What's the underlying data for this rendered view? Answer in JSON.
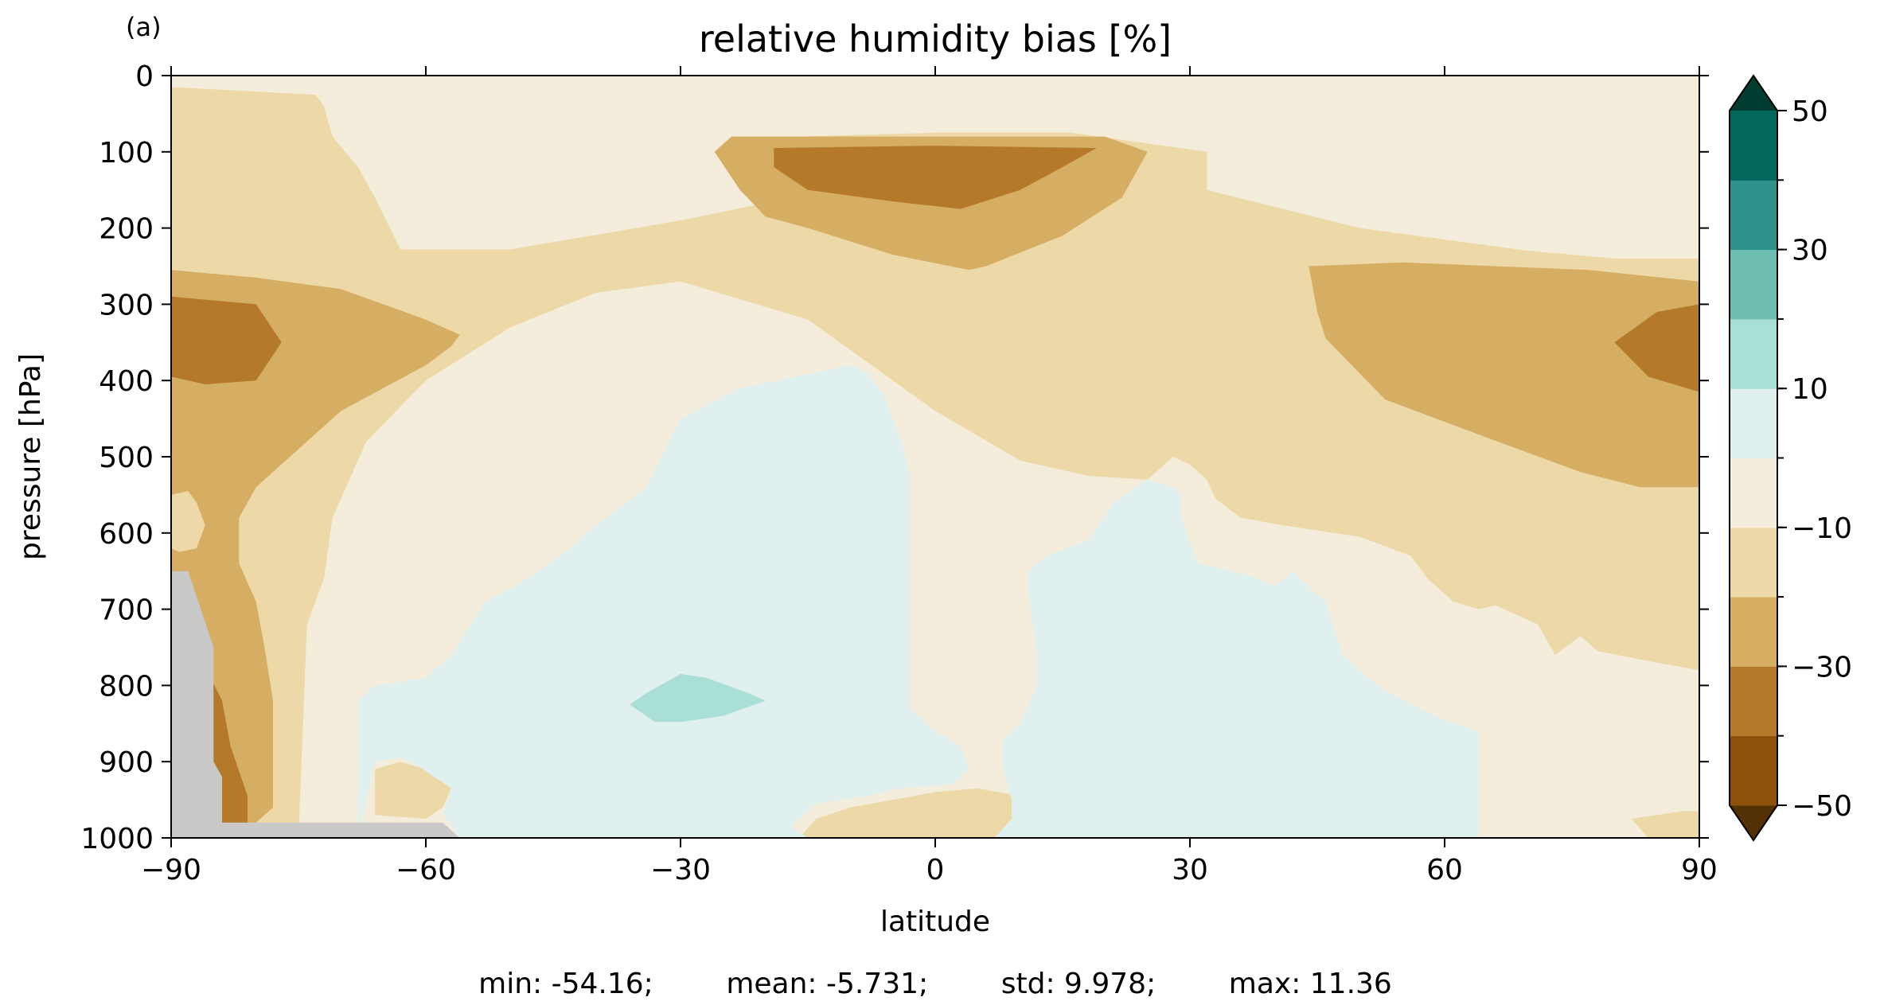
{
  "panel_label": "(a)",
  "stats_line": "min: -54.16;        mean: -5.731;        std: 9.978;        max: 11.36",
  "chart_data": {
    "type": "heatmap",
    "title": "relative humidity bias [%]",
    "xlabel": "latitude",
    "ylabel": "pressure [hPa]",
    "xlim": [
      -90,
      90
    ],
    "ylim": [
      1000,
      0
    ],
    "y_inverted": true,
    "grid": false,
    "x_ticks": [
      -90,
      -60,
      -30,
      0,
      30,
      60,
      90
    ],
    "x_tick_labels": [
      "−90",
      "−60",
      "−30",
      "0",
      "30",
      "60",
      "90"
    ],
    "y_ticks": [
      0,
      100,
      200,
      300,
      400,
      500,
      600,
      700,
      800,
      900,
      1000
    ],
    "y_tick_labels": [
      "0",
      "100",
      "200",
      "300",
      "400",
      "500",
      "600",
      "700",
      "800",
      "900",
      "1000"
    ],
    "colorbar": {
      "levels": [
        -50,
        -40,
        -30,
        -20,
        -10,
        0,
        10,
        20,
        30,
        40,
        50
      ],
      "tick_values": [
        50,
        30,
        10,
        -10,
        -30,
        -50
      ],
      "tick_labels": [
        "50",
        "30",
        "10",
        "−10",
        "−30",
        "−50"
      ],
      "extend": "both",
      "under_color": "#543005",
      "over_color": "#003c30",
      "colors": [
        "#8c510a",
        "#b5792a",
        "#d5ae63",
        "#edd9a7",
        "#f5eddc",
        "#e0f0ee",
        "#aadfd7",
        "#6ebfb2",
        "#2e928a",
        "#02675d"
      ]
    },
    "missing_color": "#c9c9c9",
    "regions": [
      {
        "level": -5,
        "points": [
          [
            -90,
            0
          ],
          [
            90,
            0
          ],
          [
            90,
            1000
          ],
          [
            -90,
            1000
          ]
        ]
      },
      {
        "level": -15,
        "points": [
          [
            -90,
            15
          ],
          [
            -73,
            25
          ],
          [
            -72,
            40
          ],
          [
            -71,
            80
          ],
          [
            -68,
            120
          ],
          [
            -66,
            160
          ],
          [
            -64,
            205
          ],
          [
            -63,
            228
          ],
          [
            -50,
            228
          ],
          [
            -30,
            190
          ],
          [
            -19,
            165
          ],
          [
            -19,
            140
          ],
          [
            -20,
            100
          ],
          [
            -16,
            80
          ],
          [
            0,
            75
          ],
          [
            16,
            75
          ],
          [
            32,
            100
          ],
          [
            32,
            150
          ],
          [
            50,
            200
          ],
          [
            70,
            230
          ],
          [
            80,
            240
          ],
          [
            90,
            240
          ],
          [
            90,
            780
          ],
          [
            85,
            770
          ],
          [
            78,
            755
          ],
          [
            76,
            735
          ],
          [
            73,
            760
          ],
          [
            71,
            720
          ],
          [
            69,
            710
          ],
          [
            66,
            695
          ],
          [
            64,
            700
          ],
          [
            61,
            690
          ],
          [
            58,
            660
          ],
          [
            56,
            630
          ],
          [
            50,
            605
          ],
          [
            41,
            590
          ],
          [
            36,
            580
          ],
          [
            33,
            555
          ],
          [
            32,
            530
          ],
          [
            30,
            510
          ],
          [
            28,
            500
          ],
          [
            25,
            530
          ],
          [
            18,
            525
          ],
          [
            10,
            505
          ],
          [
            0,
            440
          ],
          [
            -15,
            320
          ],
          [
            -30,
            270
          ],
          [
            -40,
            285
          ],
          [
            -50,
            330
          ],
          [
            -60,
            400
          ],
          [
            -67,
            480
          ],
          [
            -71,
            580
          ],
          [
            -72,
            660
          ],
          [
            -74,
            720
          ],
          [
            -75,
            1000
          ],
          [
            -90,
            1000
          ]
        ]
      },
      {
        "level": -15,
        "points": [
          [
            88,
            965
          ],
          [
            90,
            965
          ],
          [
            90,
            1000
          ],
          [
            84,
            1000
          ],
          [
            82,
            975
          ]
        ]
      },
      {
        "level": -15,
        "points": [
          [
            -16,
            1000
          ],
          [
            -14,
            975
          ],
          [
            -10,
            960
          ],
          [
            0,
            940
          ],
          [
            5,
            935
          ],
          [
            10,
            945
          ],
          [
            10,
            1000
          ]
        ]
      },
      {
        "level": -15,
        "points": [
          [
            -66,
            910
          ],
          [
            -63,
            900
          ],
          [
            -60,
            910
          ],
          [
            -57,
            935
          ],
          [
            -58,
            960
          ],
          [
            -60,
            975
          ],
          [
            -66,
            970
          ]
        ]
      },
      {
        "level": -25,
        "points": [
          [
            -90,
            255
          ],
          [
            -80,
            265
          ],
          [
            -70,
            280
          ],
          [
            -60,
            320
          ],
          [
            -56,
            340
          ],
          [
            -57,
            355
          ],
          [
            -60,
            380
          ],
          [
            -70,
            440
          ],
          [
            -80,
            540
          ],
          [
            -82,
            580
          ],
          [
            -82,
            640
          ],
          [
            -80,
            690
          ],
          [
            -79,
            750
          ],
          [
            -78,
            820
          ],
          [
            -78,
            900
          ],
          [
            -78,
            960
          ],
          [
            -82,
            1000
          ],
          [
            -90,
            1000
          ]
        ]
      },
      {
        "level": -25,
        "points": [
          [
            -26,
            100
          ],
          [
            -24,
            80
          ],
          [
            0,
            80
          ],
          [
            20,
            80
          ],
          [
            25,
            100
          ],
          [
            22,
            160
          ],
          [
            15,
            210
          ],
          [
            6,
            250
          ],
          [
            4,
            255
          ],
          [
            -5,
            235
          ],
          [
            -15,
            200
          ],
          [
            -20,
            185
          ],
          [
            -23,
            150
          ]
        ]
      },
      {
        "level": -25,
        "points": [
          [
            44,
            250
          ],
          [
            55,
            245
          ],
          [
            66,
            250
          ],
          [
            77,
            255
          ],
          [
            90,
            270
          ],
          [
            90,
            540
          ],
          [
            83,
            540
          ],
          [
            76,
            520
          ],
          [
            65,
            475
          ],
          [
            53,
            425
          ],
          [
            46,
            345
          ],
          [
            45,
            310
          ]
        ]
      },
      {
        "level": -20,
        "points": [
          [
            -90,
            550
          ],
          [
            -88,
            545
          ],
          [
            -87,
            560
          ],
          [
            -86,
            590
          ],
          [
            -87,
            620
          ],
          [
            -89,
            625
          ],
          [
            -90,
            620
          ]
        ]
      },
      {
        "level": -35,
        "points": [
          [
            -90,
            290
          ],
          [
            -80,
            300
          ],
          [
            -77,
            350
          ],
          [
            -80,
            400
          ],
          [
            -86,
            405
          ],
          [
            -90,
            395
          ]
        ]
      },
      {
        "level": -35,
        "points": [
          [
            -19,
            95
          ],
          [
            0,
            92
          ],
          [
            19,
            95
          ],
          [
            15,
            120
          ],
          [
            10,
            150
          ],
          [
            3,
            175
          ],
          [
            -5,
            165
          ],
          [
            -15,
            150
          ],
          [
            -19,
            120
          ]
        ]
      },
      {
        "level": -35,
        "points": [
          [
            80,
            350
          ],
          [
            85,
            310
          ],
          [
            90,
            300
          ],
          [
            90,
            415
          ],
          [
            84,
            395
          ]
        ]
      },
      {
        "level": -35,
        "points": [
          [
            -86,
            775
          ],
          [
            -84,
            820
          ],
          [
            -83,
            880
          ],
          [
            -81,
            945
          ],
          [
            -81,
            980
          ],
          [
            -86,
            990
          ]
        ]
      },
      {
        "level": 5,
        "points": [
          [
            -68,
            1000
          ],
          [
            -68,
            820
          ],
          [
            -66,
            800
          ],
          [
            -60,
            790
          ],
          [
            -57,
            760
          ],
          [
            -53,
            690
          ],
          [
            -48,
            660
          ],
          [
            -43,
            620
          ],
          [
            -40,
            590
          ],
          [
            -34,
            540
          ],
          [
            -30,
            450
          ],
          [
            -23,
            410
          ],
          [
            -10,
            380
          ],
          [
            -8,
            390
          ],
          [
            -6,
            420
          ],
          [
            -4,
            480
          ],
          [
            -3,
            520
          ],
          [
            -3,
            600
          ],
          [
            -3,
            700
          ],
          [
            -3,
            800
          ],
          [
            -3,
            830
          ],
          [
            0,
            860
          ],
          [
            3,
            880
          ],
          [
            4,
            910
          ],
          [
            2,
            930
          ],
          [
            -4,
            935
          ],
          [
            -8,
            945
          ],
          [
            -14,
            955
          ],
          [
            -17,
            985
          ],
          [
            -15,
            1000
          ],
          [
            -56,
            1000
          ],
          [
            -58,
            968
          ],
          [
            -57,
            935
          ],
          [
            -61,
            905
          ],
          [
            -63,
            895
          ],
          [
            -66,
            900
          ]
        ]
      },
      {
        "level": 5,
        "points": [
          [
            7,
            1000
          ],
          [
            9,
            975
          ],
          [
            9,
            950
          ],
          [
            8,
            910
          ],
          [
            8,
            870
          ],
          [
            10,
            850
          ],
          [
            12,
            800
          ],
          [
            12,
            760
          ],
          [
            11,
            680
          ],
          [
            11,
            650
          ],
          [
            13,
            630
          ],
          [
            18,
            610
          ],
          [
            21,
            560
          ],
          [
            25,
            530
          ],
          [
            28,
            540
          ],
          [
            29,
            550
          ],
          [
            29,
            580
          ],
          [
            31,
            640
          ],
          [
            37,
            655
          ],
          [
            40,
            670
          ],
          [
            42,
            650
          ],
          [
            46,
            690
          ],
          [
            48,
            760
          ],
          [
            52,
            800
          ],
          [
            57,
            830
          ],
          [
            60,
            845
          ],
          [
            64,
            860
          ],
          [
            64,
            1000
          ]
        ]
      },
      {
        "level": 15,
        "points": [
          [
            -36,
            825
          ],
          [
            -34,
            810
          ],
          [
            -30,
            785
          ],
          [
            -27,
            790
          ],
          [
            -22,
            810
          ],
          [
            -20,
            820
          ],
          [
            -25,
            840
          ],
          [
            -30,
            848
          ],
          [
            -33,
            848
          ]
        ]
      },
      {
        "level": "missing",
        "points": [
          [
            -90,
            650
          ],
          [
            -88,
            650
          ],
          [
            -85,
            750
          ],
          [
            -85,
            900
          ],
          [
            -84,
            920
          ],
          [
            -84,
            980
          ],
          [
            -58,
            980
          ],
          [
            -56,
            1000
          ],
          [
            -90,
            1000
          ]
        ]
      }
    ]
  }
}
